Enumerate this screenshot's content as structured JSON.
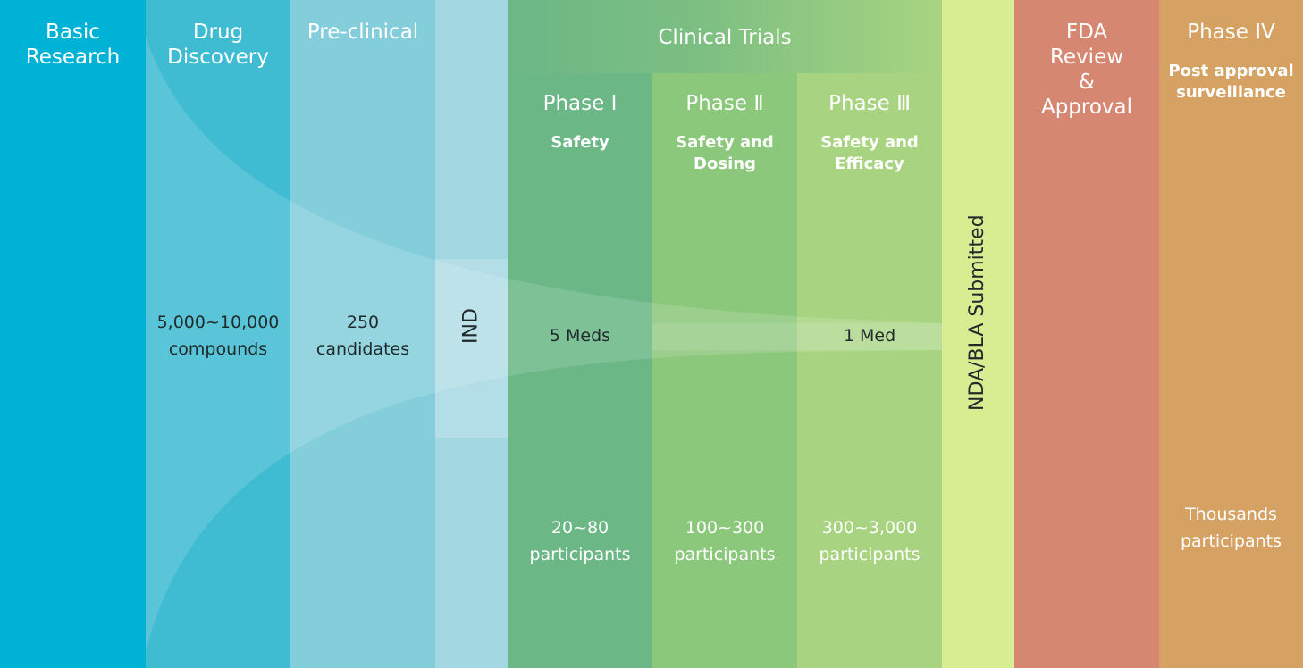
{
  "colors": {
    "basic_research": "#00b3d6",
    "drug_discovery": "#3fbcd2",
    "pre_clinical": "#83ceda",
    "ind": "#a3d7e2",
    "phase_i": "#6bb786",
    "phase_ii": "#8cc87b",
    "phase_iii": "#a8d481",
    "nda_bla": "#d8ec92",
    "fda": "#d68771",
    "phase_iv": "#d6a263"
  },
  "stages": {
    "basic_research": "Basic\nResearch",
    "drug_discovery": "Drug\nDiscovery",
    "pre_clinical": "Pre-clinical",
    "ind": "IND",
    "clinical_trials": "Clinical Trials",
    "nda_bla": "NDA/BLA Submitted",
    "fda": "FDA\nReview\n&\nApproval",
    "phase_iv": "Phase IV",
    "phase_iv_sub": "Post approval\nsurveillance"
  },
  "phases": {
    "phase_i": "Phase Ⅰ",
    "phase_i_sub": "Safety",
    "phase_ii": "Phase Ⅱ",
    "phase_ii_sub": "Safety and\nDosing",
    "phase_iii": "Phase Ⅲ",
    "phase_iii_sub": "Safety and\nEfficacy"
  },
  "counts": {
    "compounds": "5,000~10,000\ncompounds",
    "candidates": "250\ncandidates",
    "five_meds": "5 Meds",
    "one_med": "1 Med"
  },
  "participants": {
    "phase_i": "20~80\nparticipants",
    "phase_ii": "100~300\nparticipants",
    "phase_iii": "300~3,000\nparticipants",
    "phase_iv": "Thousands\nparticipants"
  }
}
